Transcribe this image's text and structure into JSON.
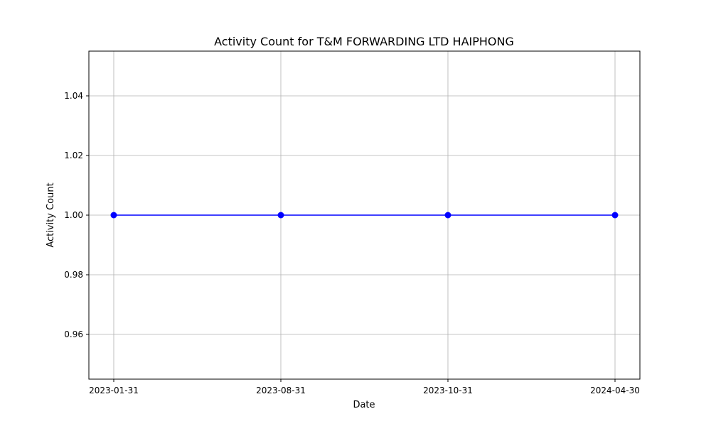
{
  "chart_data": {
    "type": "line",
    "title": "Activity Count for T&M FORWARDING LTD HAIPHONG",
    "xlabel": "Date",
    "ylabel": "Activity Count",
    "x": [
      "2023-01-31",
      "2023-08-31",
      "2023-10-31",
      "2024-04-30"
    ],
    "x_scale": "categorical",
    "series": [
      {
        "values": [
          1.0,
          1.0,
          1.0,
          1.0
        ],
        "color": "#0000ff",
        "marker": "circle"
      }
    ],
    "ylim": [
      0.945,
      1.055
    ],
    "yticks": [
      0.96,
      0.98,
      1.0,
      1.02,
      1.04
    ],
    "ytick_labels": [
      "0.96",
      "0.98",
      "1.00",
      "1.02",
      "1.04"
    ],
    "grid": true,
    "legend": "none"
  }
}
